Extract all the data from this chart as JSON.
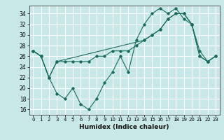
{
  "title": "",
  "xlabel": "Humidex (Indice chaleur)",
  "bg_color": "#c8e8e8",
  "line_color": "#1a6b5a",
  "grid_color": "#ffffff",
  "xlim": [
    -0.5,
    23.5
  ],
  "ylim": [
    15,
    35.5
  ],
  "yticks": [
    16,
    18,
    20,
    22,
    24,
    26,
    28,
    30,
    32,
    34
  ],
  "xticks": [
    0,
    1,
    2,
    3,
    4,
    5,
    6,
    7,
    8,
    9,
    10,
    11,
    12,
    13,
    14,
    15,
    16,
    17,
    18,
    19,
    20,
    21,
    22,
    23
  ],
  "line1_x": [
    0,
    1,
    2,
    3,
    4,
    5,
    6,
    7,
    8,
    9,
    10,
    11,
    12,
    13,
    14,
    15,
    16,
    17,
    18,
    19,
    20,
    21,
    22,
    23
  ],
  "line1_y": [
    27,
    26,
    22,
    19,
    18,
    20,
    17,
    16,
    18,
    21,
    23,
    26,
    23,
    29,
    32,
    34,
    35,
    34,
    35,
    33,
    32,
    27,
    25,
    26
  ],
  "line2_x": [
    0,
    1,
    2,
    3,
    14,
    15,
    16,
    17,
    18,
    19,
    20,
    21,
    22,
    23
  ],
  "line2_y": [
    27,
    26,
    22,
    25,
    29,
    30,
    31,
    33,
    34,
    34,
    32,
    26,
    25,
    26
  ],
  "line3_x": [
    0,
    1,
    2,
    3,
    4,
    5,
    6,
    7,
    8,
    9,
    10,
    11,
    12,
    13,
    14,
    15,
    16,
    17,
    18,
    19,
    20,
    21,
    22,
    23
  ],
  "line3_y": [
    27,
    26,
    22,
    25,
    25,
    25,
    25,
    25,
    26,
    26,
    27,
    27,
    27,
    28,
    29,
    30,
    31,
    33,
    34,
    34,
    32,
    26,
    25,
    26
  ]
}
